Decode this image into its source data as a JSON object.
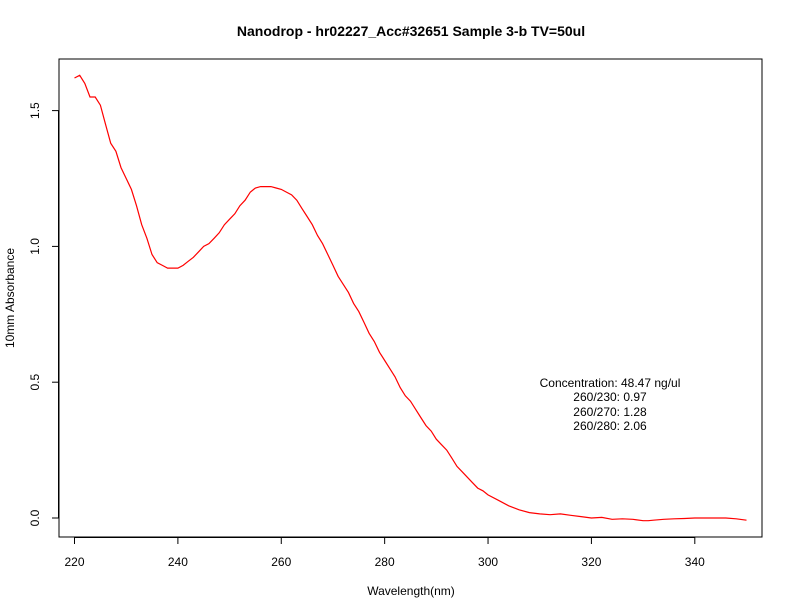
{
  "chart_data": {
    "type": "line",
    "title": "Nanodrop - hr02227_Acc#32651 Sample 3-b TV=50ul",
    "xlabel": "Wavelength(nm)",
    "ylabel": "10mm Absorbance",
    "xlim": [
      217,
      353
    ],
    "ylim": [
      -0.07,
      1.69
    ],
    "xticks": [
      220,
      240,
      260,
      280,
      300,
      320,
      340
    ],
    "yticks": [
      0.0,
      0.5,
      1.0,
      1.5
    ],
    "xtick_labels": [
      "220",
      "240",
      "260",
      "280",
      "300",
      "320",
      "340"
    ],
    "ytick_labels": [
      "0.0",
      "0.5",
      "1.0",
      "1.5"
    ],
    "grid": false,
    "series": [
      {
        "color": "#ff0000",
        "x": [
          220,
          221,
          222,
          223,
          224,
          225,
          226,
          227,
          228,
          229,
          230,
          231,
          232,
          233,
          234,
          235,
          236,
          237,
          238,
          239,
          240,
          241,
          242,
          243,
          244,
          245,
          246,
          247,
          248,
          249,
          250,
          251,
          252,
          253,
          254,
          255,
          256,
          257,
          258,
          259,
          260,
          261,
          262,
          263,
          264,
          265,
          266,
          267,
          268,
          269,
          270,
          271,
          272,
          273,
          274,
          275,
          276,
          277,
          278,
          279,
          280,
          281,
          282,
          283,
          284,
          285,
          286,
          287,
          288,
          289,
          290,
          291,
          292,
          293,
          294,
          295,
          296,
          297,
          298,
          299,
          300,
          302,
          304,
          306,
          308,
          310,
          312,
          314,
          316,
          318,
          320,
          322,
          324,
          326,
          328,
          330,
          331,
          332,
          334,
          336,
          338,
          340,
          342,
          344,
          346,
          348,
          350
        ],
        "y": [
          1.62,
          1.63,
          1.6,
          1.55,
          1.55,
          1.52,
          1.45,
          1.38,
          1.35,
          1.29,
          1.25,
          1.21,
          1.15,
          1.08,
          1.03,
          0.97,
          0.94,
          0.93,
          0.92,
          0.92,
          0.92,
          0.93,
          0.945,
          0.96,
          0.98,
          1.0,
          1.01,
          1.03,
          1.05,
          1.08,
          1.1,
          1.12,
          1.15,
          1.17,
          1.2,
          1.215,
          1.22,
          1.22,
          1.22,
          1.215,
          1.21,
          1.2,
          1.19,
          1.17,
          1.14,
          1.11,
          1.08,
          1.04,
          1.01,
          0.97,
          0.93,
          0.89,
          0.86,
          0.83,
          0.79,
          0.76,
          0.72,
          0.68,
          0.65,
          0.61,
          0.58,
          0.55,
          0.52,
          0.48,
          0.45,
          0.43,
          0.4,
          0.37,
          0.34,
          0.32,
          0.29,
          0.27,
          0.25,
          0.22,
          0.19,
          0.17,
          0.15,
          0.13,
          0.11,
          0.1,
          0.085,
          0.065,
          0.045,
          0.03,
          0.02,
          0.015,
          0.012,
          0.015,
          0.01,
          0.005,
          0.0,
          0.002,
          -0.005,
          -0.003,
          -0.005,
          -0.01,
          -0.01,
          -0.008,
          -0.005,
          -0.003,
          -0.002,
          0.0,
          0.0,
          0.0,
          0.0,
          -0.003,
          -0.008
        ]
      }
    ],
    "annotation_lines": [
      "Concentration: 48.47 ng/ul",
      "260/230: 0.97",
      "260/270: 1.28",
      "260/280: 2.06"
    ]
  }
}
